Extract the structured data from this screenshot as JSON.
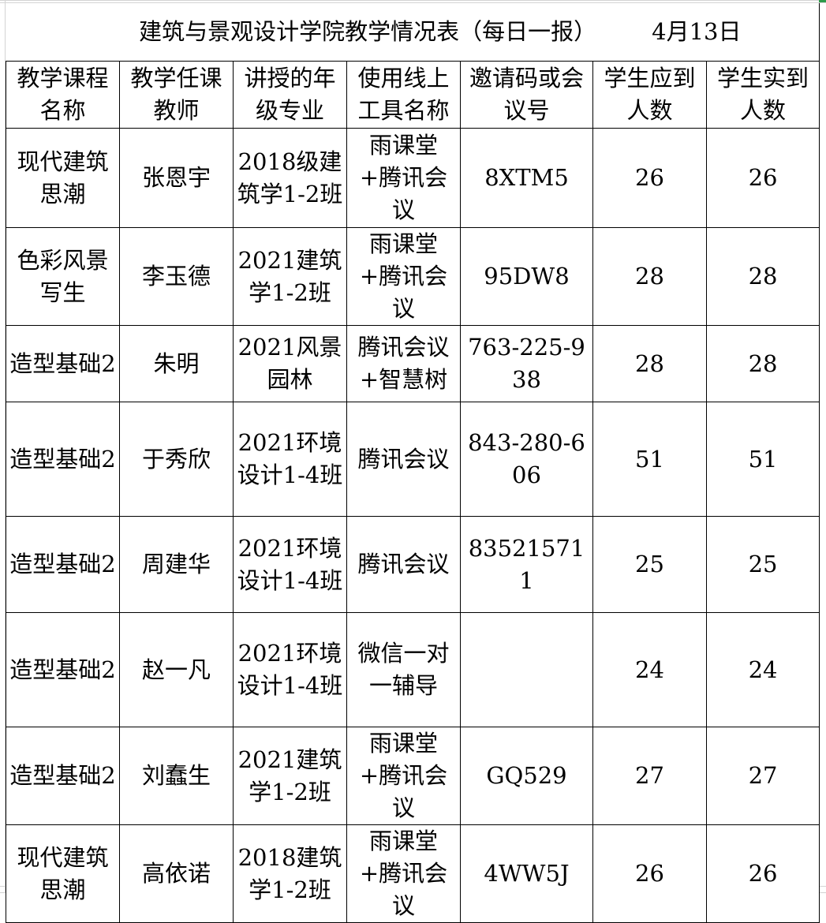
{
  "title": {
    "text": "建筑与景观设计学院教学情况表（每日一报）",
    "date": "4月13日"
  },
  "headers": [
    "教学课程名称",
    "教学任课教师",
    "讲授的年级专业",
    "使用线上工具名称",
    "邀请码或会议号",
    "学生应到人数",
    "学生实到人数"
  ],
  "rows": [
    [
      "现代建筑思潮",
      "张恩宇",
      "2018级建筑学1-2班",
      "雨课堂+腾讯会议",
      "8XTM5",
      "26",
      "26"
    ],
    [
      "色彩风景写生",
      "李玉德",
      "2021建筑学1-2班",
      "雨课堂+腾讯会议",
      "95DW8",
      "28",
      "28"
    ],
    [
      "造型基础2",
      "朱明",
      "2021风景园林",
      "腾讯会议+智慧树",
      "763-225-938",
      "28",
      "28"
    ],
    [
      "造型基础2",
      "于秀欣",
      "2021环境设计1-4班",
      "腾讯会议",
      "843-280-606",
      "51",
      "51"
    ],
    [
      "造型基础2",
      "周建华",
      "2021环境设计1-4班",
      "腾讯会议",
      "835215711",
      "25",
      "25"
    ],
    [
      "造型基础2",
      "赵一凡",
      "2021环境设计1-4班",
      "微信一对一辅导",
      "",
      "24",
      "24"
    ],
    [
      "造型基础2",
      "刘蠢生",
      "2021建筑学1-2班",
      "雨课堂+腾讯会议",
      "GQ529",
      "27",
      "27"
    ],
    [
      "现代建筑思潮",
      "高依诺",
      "2018建筑学1-2班",
      "雨课堂+腾讯会议",
      "4WW5J",
      "26",
      "26"
    ]
  ],
  "colors": {
    "border": "#000000",
    "gridline": "#d4d4d4",
    "selection_accent": "#2e9a4b"
  }
}
